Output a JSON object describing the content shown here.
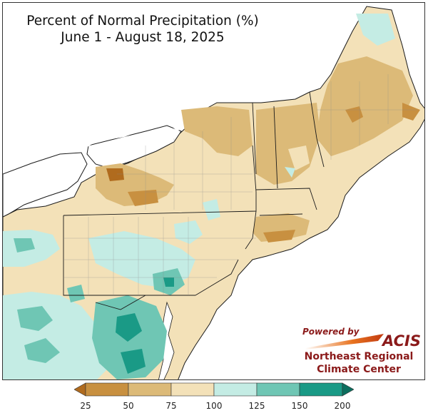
{
  "title": {
    "line1": "Percent of Normal Precipitation (%)",
    "line2": "June 1 - August 18, 2025"
  },
  "branding": {
    "powered_by": "Powered by",
    "acis": "ACIS",
    "center_line1": "Northeast Regional",
    "center_line2": "Climate Center"
  },
  "legend": {
    "ticks": [
      "25",
      "50",
      "75",
      "100",
      "125",
      "150",
      "200"
    ],
    "bins": [
      {
        "range": "<25",
        "color": "#b06b1e"
      },
      {
        "range": "25-50",
        "color": "#c89040"
      },
      {
        "range": "50-75",
        "color": "#dcba78"
      },
      {
        "range": "75-100",
        "color": "#f3e1b8"
      },
      {
        "range": "100-125",
        "color": "#c4ece4"
      },
      {
        "range": "125-150",
        "color": "#6fc6b4"
      },
      {
        "range": "150-200",
        "color": "#1a9a86"
      },
      {
        "range": ">200",
        "color": "#0c6e5e"
      }
    ]
  },
  "colors": {
    "land_outline": "#1a1a1a",
    "county_lines": "#8c8c8c",
    "water": "#ffffff"
  }
}
